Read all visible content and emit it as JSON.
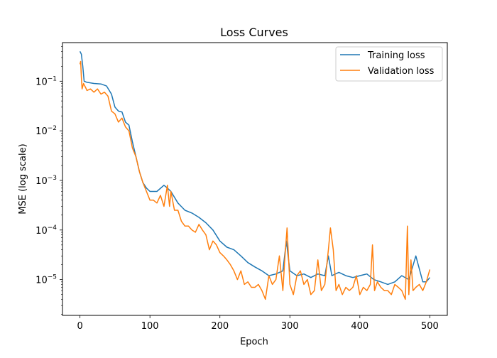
{
  "chart_data": {
    "type": "line",
    "title": "Loss Curves",
    "xlabel": "Epoch",
    "ylabel": "MSE (log scale)",
    "yscale": "log",
    "xlim": [
      -25,
      525
    ],
    "ylim": [
      1.9e-06,
      0.6
    ],
    "grid": false,
    "legend_position": "top-right",
    "x_ticks": [
      0,
      100,
      200,
      300,
      400,
      500
    ],
    "x_tick_labels": [
      "0",
      "100",
      "200",
      "300",
      "400",
      "500"
    ],
    "y_ticks": [
      1e-05,
      0.0001,
      0.001,
      0.01,
      0.1
    ],
    "y_tick_labels": [
      {
        "base": "10",
        "exp": "−5"
      },
      {
        "base": "10",
        "exp": "−4"
      },
      {
        "base": "10",
        "exp": "−3"
      },
      {
        "base": "10",
        "exp": "−2"
      },
      {
        "base": "10",
        "exp": "−1"
      }
    ],
    "series": [
      {
        "name": "Training loss",
        "color": "#1f77b4",
        "x": [
          0,
          2,
          4,
          6,
          10,
          20,
          30,
          38,
          45,
          50,
          55,
          60,
          65,
          70,
          75,
          80,
          85,
          90,
          95,
          100,
          110,
          120,
          125,
          130,
          140,
          150,
          160,
          170,
          180,
          190,
          200,
          210,
          220,
          230,
          240,
          250,
          260,
          270,
          280,
          290,
          295,
          300,
          310,
          320,
          330,
          340,
          350,
          355,
          360,
          370,
          380,
          390,
          400,
          410,
          420,
          430,
          440,
          450,
          460,
          470,
          480,
          490,
          495,
          500
        ],
        "y": [
          0.4,
          0.35,
          0.2,
          0.1,
          0.095,
          0.09,
          0.088,
          0.08,
          0.055,
          0.03,
          0.025,
          0.024,
          0.015,
          0.013,
          0.006,
          0.003,
          0.0015,
          0.0009,
          0.0007,
          0.0006,
          0.0006,
          0.0008,
          0.0007,
          0.0006,
          0.00035,
          0.00025,
          0.00022,
          0.00018,
          0.00014,
          0.0001,
          6e-05,
          4.5e-05,
          4e-05,
          3e-05,
          2.2e-05,
          1.8e-05,
          1.5e-05,
          1.2e-05,
          1.3e-05,
          1.5e-05,
          6e-05,
          1.5e-05,
          1.2e-05,
          1.3e-05,
          1.1e-05,
          1.3e-05,
          1.2e-05,
          3e-05,
          1.2e-05,
          1.4e-05,
          1.2e-05,
          1.1e-05,
          1.2e-05,
          1.3e-05,
          1e-05,
          9e-06,
          8e-06,
          9e-06,
          1.2e-05,
          1e-05,
          3e-05,
          9e-06,
          9e-06,
          1.1e-05
        ]
      },
      {
        "name": "Validation loss",
        "color": "#ff7f0e",
        "x": [
          0,
          1,
          2,
          3,
          5,
          8,
          10,
          15,
          20,
          25,
          30,
          35,
          40,
          45,
          50,
          55,
          60,
          65,
          70,
          75,
          80,
          85,
          90,
          95,
          100,
          105,
          110,
          115,
          120,
          125,
          128,
          130,
          135,
          140,
          145,
          150,
          155,
          160,
          165,
          170,
          175,
          180,
          185,
          190,
          195,
          200,
          205,
          210,
          215,
          220,
          225,
          230,
          235,
          240,
          245,
          250,
          255,
          260,
          265,
          270,
          275,
          280,
          285,
          290,
          293,
          296,
          300,
          305,
          310,
          315,
          320,
          325,
          330,
          335,
          340,
          345,
          350,
          355,
          358,
          362,
          366,
          370,
          375,
          380,
          385,
          390,
          395,
          400,
          405,
          410,
          415,
          418,
          421,
          425,
          430,
          435,
          440,
          445,
          450,
          455,
          460,
          465,
          468,
          470,
          473,
          476,
          480,
          485,
          490,
          495,
          500
        ],
        "y": [
          0.22,
          0.25,
          0.12,
          0.07,
          0.09,
          0.075,
          0.065,
          0.07,
          0.06,
          0.07,
          0.055,
          0.06,
          0.05,
          0.025,
          0.022,
          0.015,
          0.018,
          0.012,
          0.01,
          0.0045,
          0.003,
          0.0015,
          0.0009,
          0.0006,
          0.0004,
          0.0004,
          0.00035,
          0.0005,
          0.0003,
          0.0008,
          0.0003,
          0.0006,
          0.00025,
          0.00025,
          0.00015,
          0.00012,
          0.00012,
          0.0001,
          9e-05,
          0.00013,
          0.0001,
          8e-05,
          4e-05,
          6e-05,
          5e-05,
          3.5e-05,
          3e-05,
          2.5e-05,
          2e-05,
          1.5e-05,
          1e-05,
          1.5e-05,
          8e-06,
          9e-06,
          7e-06,
          7e-06,
          8e-06,
          6e-06,
          4e-06,
          1.2e-05,
          8e-06,
          1e-05,
          3e-05,
          6e-06,
          3e-05,
          0.00011,
          8e-06,
          5e-06,
          1.2e-05,
          1.5e-05,
          8e-06,
          1e-05,
          5e-06,
          6e-06,
          2.5e-05,
          6e-06,
          8e-06,
          4e-05,
          0.00011,
          4e-05,
          6e-06,
          8e-06,
          5e-06,
          7e-06,
          6e-06,
          7e-06,
          1.2e-05,
          5e-06,
          7e-06,
          6e-06,
          8e-06,
          5e-05,
          6e-06,
          9e-06,
          7e-06,
          6e-06,
          6e-06,
          5e-06,
          8e-06,
          7e-06,
          6e-06,
          4e-06,
          0.00012,
          5e-06,
          2.5e-05,
          6e-06,
          7e-06,
          8e-06,
          6e-06,
          9e-06,
          1.6e-05
        ]
      }
    ]
  }
}
